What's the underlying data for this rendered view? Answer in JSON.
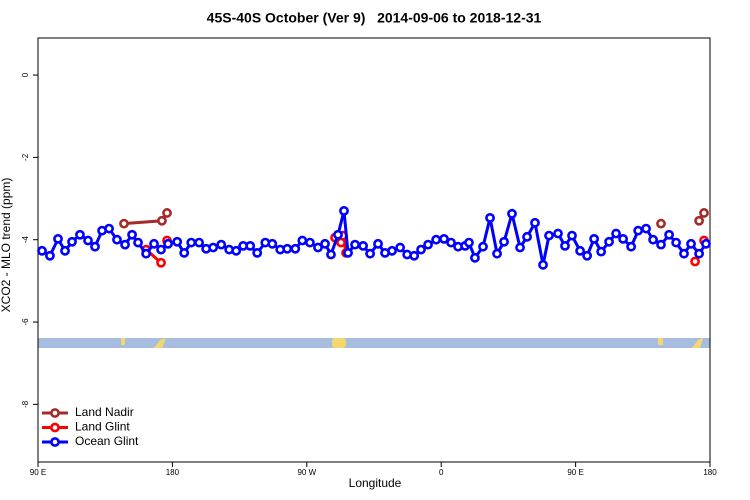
{
  "chart_data": {
    "type": "line",
    "title": "45S-40S October (Ver 9)   2014-09-06 to 2018-12-31",
    "x_label": "Longitude",
    "y_label": "XCO2 - MLO trend (ppm)",
    "xlim": [
      90,
      540
    ],
    "xticks": [
      {
        "value": 90,
        "label": "90 E"
      },
      180,
      {
        "value": 270,
        "label": "90 W"
      },
      {
        "value": 360,
        "label": "0"
      },
      {
        "value": 450,
        "label": "90 E"
      },
      {
        "value": 540,
        "label": "180"
      }
    ],
    "ylim": [
      -9.4,
      0.9
    ],
    "yticks": [
      0,
      -2,
      -4,
      -6,
      -8
    ],
    "legend": "bottom-left",
    "series": [
      {
        "name": "Land Nadir",
        "color": "#a52a2a",
        "x": [
          147.6,
          173.0,
          176.4,
          null,
          507.2,
          null,
          532.7,
          536.0
        ],
        "values": [
          -3.61,
          -3.54,
          -3.35,
          null,
          -3.61,
          null,
          -3.54,
          -3.35
        ]
      },
      {
        "name": "Land Glint",
        "color": "#ff0000",
        "x": [
          162.4,
          172.4,
          null,
          176.4,
          null,
          288.9,
          292.9,
          294.2,
          296.3,
          null,
          530.0,
          null,
          536.0
        ],
        "values": [
          -4.24,
          -4.56,
          null,
          -4.02,
          null,
          -3.95,
          -4.07,
          -3.9,
          -4.32,
          null,
          -4.53,
          null,
          -4.02
        ]
      },
      {
        "name": "Ocean Glint",
        "color": "#0000ff",
        "x": [
          92.7,
          98.0,
          103.4,
          108.1,
          112.8,
          118.1,
          123.5,
          128.2,
          132.9,
          137.6,
          142.9,
          148.3,
          153.0,
          157.0,
          162.4,
          167.7,
          172.4,
          177.1,
          183.2,
          187.9,
          192.6,
          197.9,
          202.6,
          207.3,
          212.7,
          218.0,
          222.7,
          227.4,
          232.1,
          236.8,
          242.2,
          246.9,
          252.2,
          256.9,
          262.3,
          267.0,
          272.1,
          277.5,
          282.2,
          286.2,
          290.9,
          294.9,
          297.6,
          302.3,
          307.7,
          312.4,
          317.7,
          322.4,
          327.1,
          332.5,
          337.2,
          341.9,
          346.5,
          351.2,
          356.6,
          361.9,
          366.6,
          371.3,
          376.0,
          378.6,
          382.6,
          388.0,
          392.7,
          397.4,
          402.1,
          407.4,
          412.8,
          417.5,
          422.8,
          428.2,
          432.2,
          438.2,
          442.9,
          447.6,
          453.0,
          457.7,
          462.4,
          467.1,
          472.4,
          477.1,
          481.8,
          487.2,
          491.9,
          497.2,
          501.9,
          507.2,
          512.6,
          517.3,
          522.6,
          527.3,
          532.7,
          537.3
        ],
        "values": [
          -4.27,
          -4.39,
          -3.98,
          -4.27,
          -4.05,
          -3.88,
          -4.02,
          -4.17,
          -3.78,
          -3.73,
          -4.0,
          -4.12,
          -3.88,
          -4.07,
          -4.34,
          -4.1,
          -4.24,
          -4.1,
          -4.05,
          -4.32,
          -4.07,
          -4.07,
          -4.22,
          -4.19,
          -4.12,
          -4.24,
          -4.27,
          -4.15,
          -4.15,
          -4.32,
          -4.07,
          -4.1,
          -4.24,
          -4.22,
          -4.22,
          -4.02,
          -4.07,
          -4.19,
          -4.1,
          -4.36,
          -3.88,
          -3.3,
          -4.32,
          -4.12,
          -4.15,
          -4.34,
          -4.1,
          -4.32,
          -4.27,
          -4.19,
          -4.36,
          -4.39,
          -4.24,
          -4.12,
          -4.0,
          -3.98,
          -4.07,
          -4.17,
          -4.15,
          -4.07,
          -4.44,
          -4.17,
          -3.47,
          -4.34,
          -4.05,
          -3.37,
          -4.19,
          -3.93,
          -3.59,
          -4.61,
          -3.9,
          -3.85,
          -4.15,
          -3.9,
          -4.27,
          -4.39,
          -3.98,
          -4.29,
          -4.05,
          -3.85,
          -3.98,
          -4.17,
          -3.78,
          -3.73,
          -4.0,
          -4.12,
          -3.88,
          -4.07,
          -4.34,
          -4.1,
          -4.34,
          -4.1
        ]
      }
    ]
  }
}
